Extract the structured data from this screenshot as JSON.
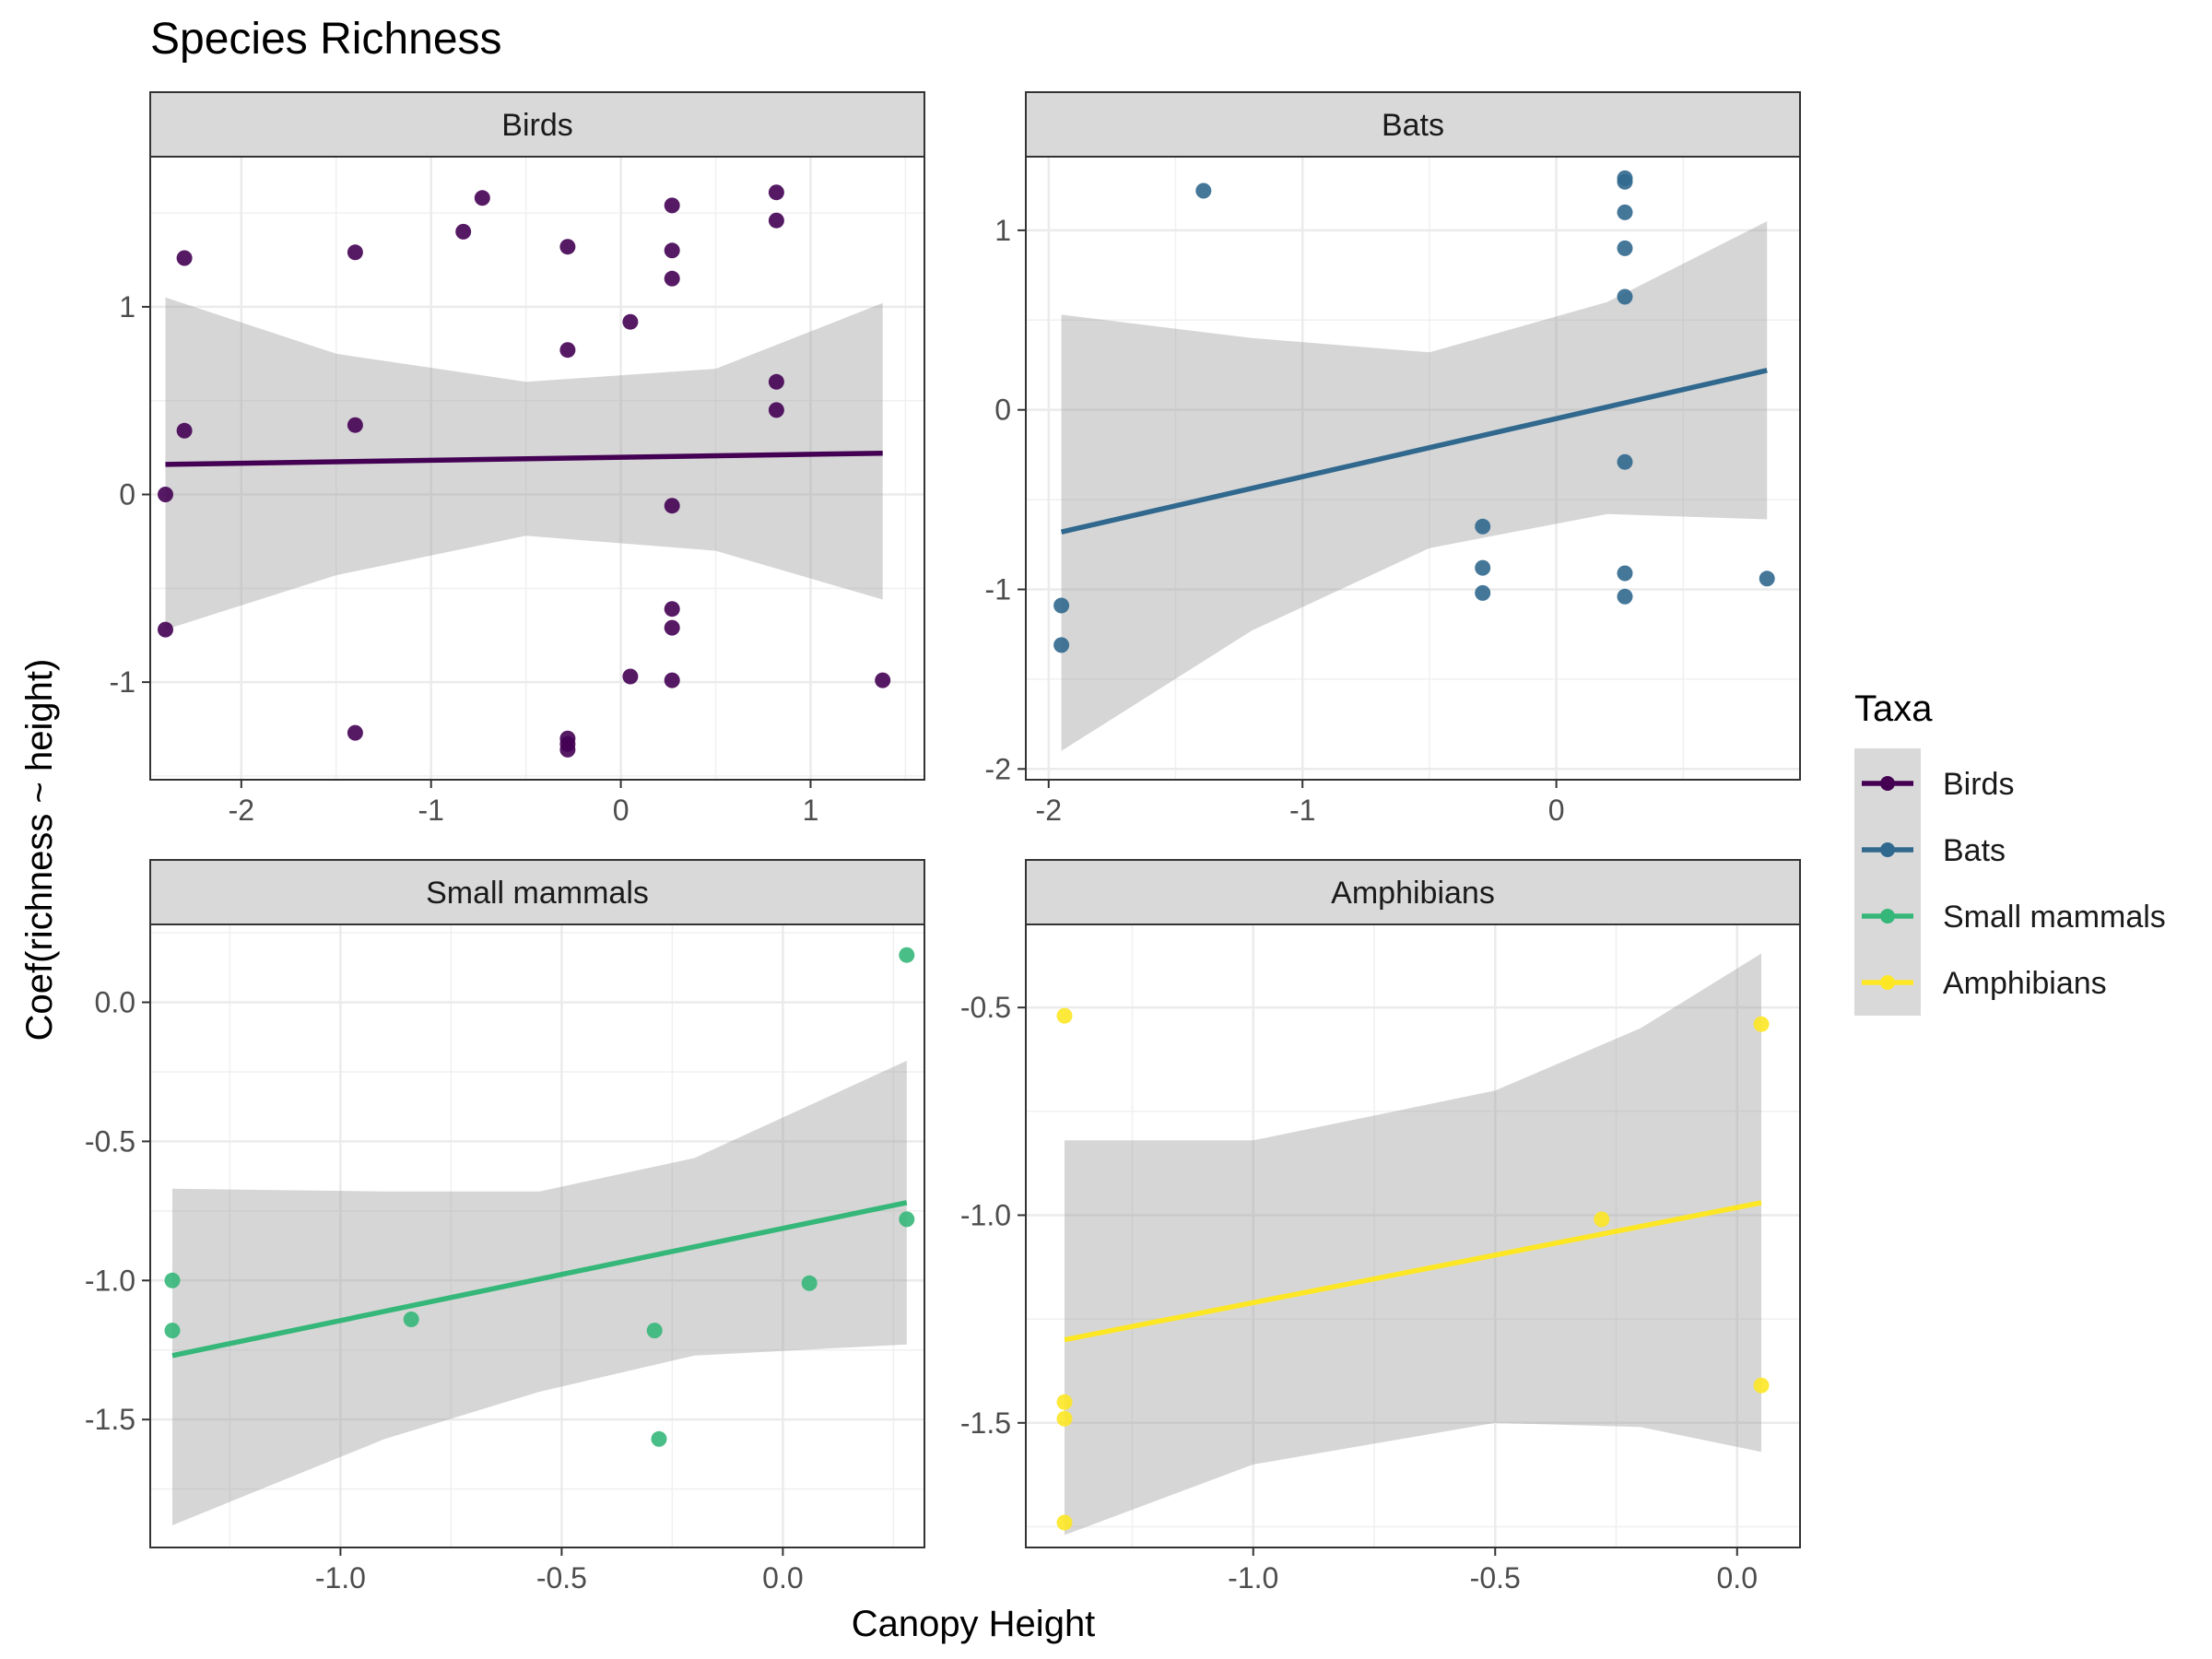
{
  "title": "Species Richness",
  "xlabel": "Canopy Height",
  "ylabel": "Coef(richness ~ height)",
  "legend": {
    "title": "Taxa",
    "placement": "right",
    "items": [
      {
        "label": "Birds",
        "color": "#440154"
      },
      {
        "label": "Bats",
        "color": "#31688e"
      },
      {
        "label": "Small mammals",
        "color": "#35b779"
      },
      {
        "label": "Amphibians",
        "color": "#fde725"
      }
    ]
  },
  "chart_data": [
    {
      "type": "scatter",
      "panel": "Birds",
      "color": "#440154",
      "grid": true,
      "xlim": [
        -2.48,
        1.6
      ],
      "ylim": [
        -1.52,
        1.8
      ],
      "xticks": [
        -2,
        -1,
        0,
        1
      ],
      "xtick_labels": [
        "-2",
        "-1",
        "0",
        "1"
      ],
      "yticks": [
        -1,
        0,
        1
      ],
      "ytick_labels": [
        "-1",
        "0",
        "1"
      ],
      "points": [
        [
          -2.3,
          1.26
        ],
        [
          -2.4,
          0.0
        ],
        [
          -2.4,
          -0.72
        ],
        [
          -2.3,
          0.34
        ],
        [
          -1.4,
          1.29
        ],
        [
          -1.4,
          0.37
        ],
        [
          -1.4,
          -1.27
        ],
        [
          -0.83,
          1.4
        ],
        [
          -0.73,
          1.58
        ],
        [
          -0.28,
          1.32
        ],
        [
          -0.28,
          0.77
        ],
        [
          -0.28,
          -1.3
        ],
        [
          -0.28,
          -1.33
        ],
        [
          -0.28,
          -1.36
        ],
        [
          0.05,
          0.92
        ],
        [
          0.05,
          -0.97
        ],
        [
          0.27,
          1.54
        ],
        [
          0.27,
          1.3
        ],
        [
          0.27,
          1.15
        ],
        [
          0.27,
          -0.06
        ],
        [
          0.27,
          -0.61
        ],
        [
          0.27,
          -0.71
        ],
        [
          0.27,
          -0.99
        ],
        [
          0.82,
          1.61
        ],
        [
          0.82,
          1.46
        ],
        [
          0.82,
          0.6
        ],
        [
          0.82,
          0.45
        ],
        [
          1.38,
          -0.99
        ]
      ],
      "fit": {
        "x": [
          -2.4,
          1.38
        ],
        "y": [
          0.16,
          0.22
        ]
      },
      "band": {
        "x": [
          -2.4,
          -1.5,
          -0.5,
          0.5,
          1.38
        ],
        "lower": [
          -0.72,
          -0.43,
          -0.22,
          -0.3,
          -0.56
        ],
        "upper": [
          1.05,
          0.75,
          0.6,
          0.67,
          1.02
        ]
      }
    },
    {
      "type": "scatter",
      "panel": "Bats",
      "color": "#31688e",
      "grid": true,
      "xlim": [
        -2.09,
        0.96
      ],
      "ylim": [
        -2.06,
        1.41
      ],
      "xticks": [
        -2,
        -1,
        0
      ],
      "xtick_labels": [
        "-2",
        "-1",
        "0"
      ],
      "yticks": [
        -2,
        -1,
        0,
        1
      ],
      "ytick_labels": [
        "-2",
        "-1",
        "0",
        "1"
      ],
      "points": [
        [
          -1.95,
          -1.09
        ],
        [
          -1.95,
          -1.31
        ],
        [
          -1.39,
          1.22
        ],
        [
          -0.29,
          -0.65
        ],
        [
          -0.29,
          -0.88
        ],
        [
          -0.29,
          -1.02
        ],
        [
          0.27,
          1.29
        ],
        [
          0.27,
          1.27
        ],
        [
          0.27,
          1.1
        ],
        [
          0.27,
          0.9
        ],
        [
          0.27,
          0.63
        ],
        [
          0.27,
          -0.29
        ],
        [
          0.27,
          -0.91
        ],
        [
          0.27,
          -1.04
        ],
        [
          0.83,
          -0.94
        ]
      ],
      "fit": {
        "x": [
          -1.95,
          0.83
        ],
        "y": [
          -0.68,
          0.22
        ]
      },
      "band": {
        "x": [
          -1.95,
          -1.2,
          -0.5,
          0.2,
          0.83
        ],
        "lower": [
          -1.9,
          -1.23,
          -0.77,
          -0.58,
          -0.61
        ],
        "upper": [
          0.53,
          0.4,
          0.32,
          0.6,
          1.05
        ]
      }
    },
    {
      "type": "scatter",
      "panel": "Small mammals",
      "color": "#35b779",
      "grid": true,
      "xlim": [
        -1.43,
        0.32
      ],
      "ylim": [
        -1.96,
        0.28
      ],
      "xticks": [
        -1.0,
        -0.5,
        0.0
      ],
      "xtick_labels": [
        "-1.0",
        "-0.5",
        "0.0"
      ],
      "yticks": [
        -1.5,
        -1.0,
        -0.5,
        0.0
      ],
      "ytick_labels": [
        "-1.5",
        "-1.0",
        "-0.5",
        "0.0"
      ],
      "points": [
        [
          -1.38,
          -1.0
        ],
        [
          -1.38,
          -1.18
        ],
        [
          -0.84,
          -1.14
        ],
        [
          -0.29,
          -1.18
        ],
        [
          -0.28,
          -1.57
        ],
        [
          0.06,
          -1.01
        ],
        [
          0.28,
          0.17
        ],
        [
          0.28,
          -0.78
        ]
      ],
      "fit": {
        "x": [
          -1.38,
          0.28
        ],
        "y": [
          -1.27,
          -0.72
        ]
      },
      "band": {
        "x": [
          -1.38,
          -0.9,
          -0.55,
          -0.2,
          0.28
        ],
        "lower": [
          -1.88,
          -1.57,
          -1.4,
          -1.27,
          -1.23
        ],
        "upper": [
          -0.67,
          -0.68,
          -0.68,
          -0.56,
          -0.21
        ]
      }
    },
    {
      "type": "scatter",
      "panel": "Amphibians",
      "color": "#fde725",
      "grid": true,
      "xlim": [
        -1.47,
        0.13
      ],
      "ylim": [
        -1.8,
        -0.3
      ],
      "xticks": [
        -1.0,
        -0.5,
        0.0
      ],
      "xtick_labels": [
        "-1.0",
        "-0.5",
        "0.0"
      ],
      "yticks": [
        -1.5,
        -1.0,
        -0.5
      ],
      "ytick_labels": [
        "-1.5",
        "-1.0",
        "-0.5"
      ],
      "points": [
        [
          -1.39,
          -0.52
        ],
        [
          -1.39,
          -1.45
        ],
        [
          -1.39,
          -1.49
        ],
        [
          -1.39,
          -1.74
        ],
        [
          -0.28,
          -1.01
        ],
        [
          0.05,
          -0.54
        ],
        [
          0.05,
          -1.41
        ]
      ],
      "fit": {
        "x": [
          -1.39,
          0.05
        ],
        "y": [
          -1.3,
          -0.97
        ]
      },
      "band": {
        "x": [
          -1.39,
          -1.0,
          -0.5,
          -0.2,
          0.05
        ],
        "lower": [
          -1.77,
          -1.6,
          -1.5,
          -1.51,
          -1.57
        ],
        "upper": [
          -0.82,
          -0.82,
          -0.7,
          -0.55,
          -0.37
        ]
      }
    }
  ]
}
